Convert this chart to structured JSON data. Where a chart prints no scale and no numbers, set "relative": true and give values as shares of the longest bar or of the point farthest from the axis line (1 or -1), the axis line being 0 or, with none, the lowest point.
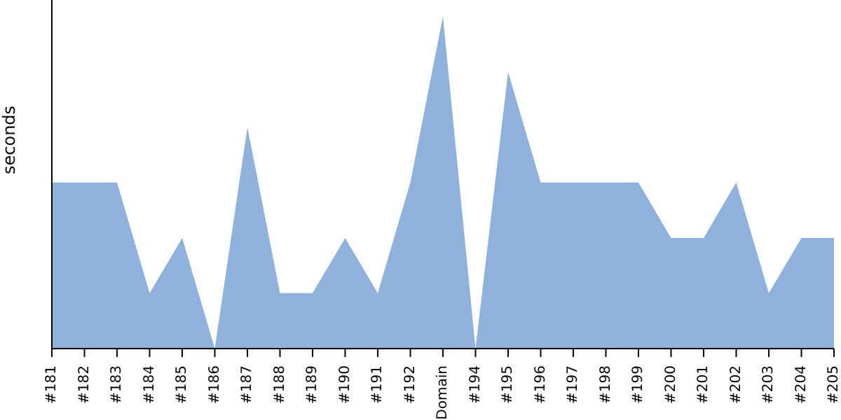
{
  "chart_data": {
    "type": "area",
    "ylabel": "seconds",
    "relative": true,
    "color": "#8fb1db",
    "grid": false,
    "categories": [
      "#181",
      "#182",
      "#183",
      "#184",
      "#185",
      "#186",
      "#187",
      "#188",
      "#189",
      "#190",
      "#191",
      "#192",
      "Domain",
      "#194",
      "#195",
      "#196",
      "#197",
      "#198",
      "#199",
      "#200",
      "#201",
      "#202",
      "#203",
      "#204",
      "#205"
    ],
    "values": [
      0.5,
      0.5,
      0.5,
      0.167,
      0.333,
      0,
      0.667,
      0.167,
      0.167,
      0.333,
      0.167,
      0.5,
      1,
      0,
      0.833,
      0.5,
      0.5,
      0.5,
      0.5,
      0.333,
      0.333,
      0.5,
      0.167,
      0.333,
      0.333
    ]
  }
}
